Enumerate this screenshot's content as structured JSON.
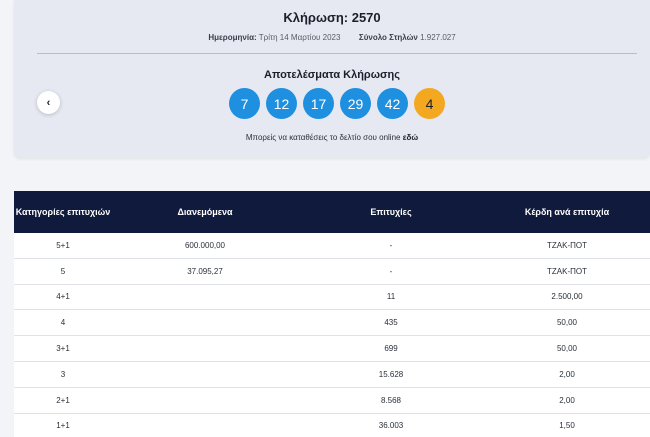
{
  "draw": {
    "title": "Κλήρωση: 2570",
    "date_label": "Ημερομηνία:",
    "date_value": "Τρίτη 14 Μαρτίου 2023",
    "columns_label": "Σύνολο Στηλών",
    "columns_value": "1.927.027",
    "results_title": "Αποτελέσματα Κλήρωσης",
    "numbers": [
      "7",
      "12",
      "17",
      "29",
      "42"
    ],
    "bonus": "4",
    "online_text": "Μπορείς να καταθέσεις το δελτίο σου online",
    "online_link": "εδώ",
    "prev_icon": "‹"
  },
  "colors": {
    "ball": "#1f8fe0",
    "bonus_ball": "#f4a81f",
    "table_header": "#0f1a3c"
  },
  "table": {
    "headers": [
      "Κατηγορίες επιτυχιών",
      "Διανεμόμενα",
      "Επιτυχίες",
      "Κέρδη ανά επιτυχία"
    ],
    "rows": [
      [
        "5+1",
        "600.000,00",
        "-",
        "ΤΖΑΚ-ΠΟΤ"
      ],
      [
        "5",
        "37.095,27",
        "-",
        "ΤΖΑΚ-ΠΟΤ"
      ],
      [
        "4+1",
        "",
        "11",
        "2.500,00"
      ],
      [
        "4",
        "",
        "435",
        "50,00"
      ],
      [
        "3+1",
        "",
        "699",
        "50,00"
      ],
      [
        "3",
        "",
        "15.628",
        "2,00"
      ],
      [
        "2+1",
        "",
        "8.568",
        "2,00"
      ],
      [
        "1+1",
        "",
        "36.003",
        "1,50"
      ]
    ]
  }
}
